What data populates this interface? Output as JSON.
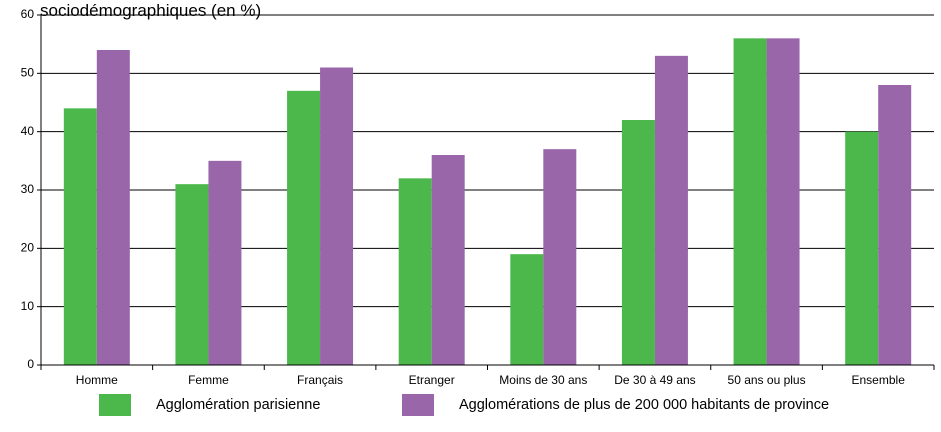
{
  "colors": {
    "background": "#ffffff",
    "axis": "#000000",
    "grid": "#000000"
  },
  "chart_data": {
    "type": "bar",
    "title": "sociodémographiques (en %)",
    "xlabel": "",
    "ylabel": "",
    "ylim": [
      0,
      60
    ],
    "yticks": [
      0,
      10,
      20,
      30,
      40,
      50,
      60
    ],
    "grid": true,
    "legend_position": "bottom",
    "categories": [
      "Homme",
      "Femme",
      "Français",
      "Etranger",
      "Moins de 30 ans",
      "De 30 à 49 ans",
      "50 ans ou plus",
      "Ensemble"
    ],
    "series": [
      {
        "name": "Agglomération parisienne",
        "color": "#4cb84c",
        "values": [
          44,
          31,
          47,
          32,
          19,
          42,
          56,
          40
        ]
      },
      {
        "name": "Agglomérations de plus de 200 000 habitants de province",
        "color": "#9966aa",
        "values": [
          54,
          35,
          51,
          36,
          37,
          53,
          56,
          48
        ]
      }
    ]
  }
}
